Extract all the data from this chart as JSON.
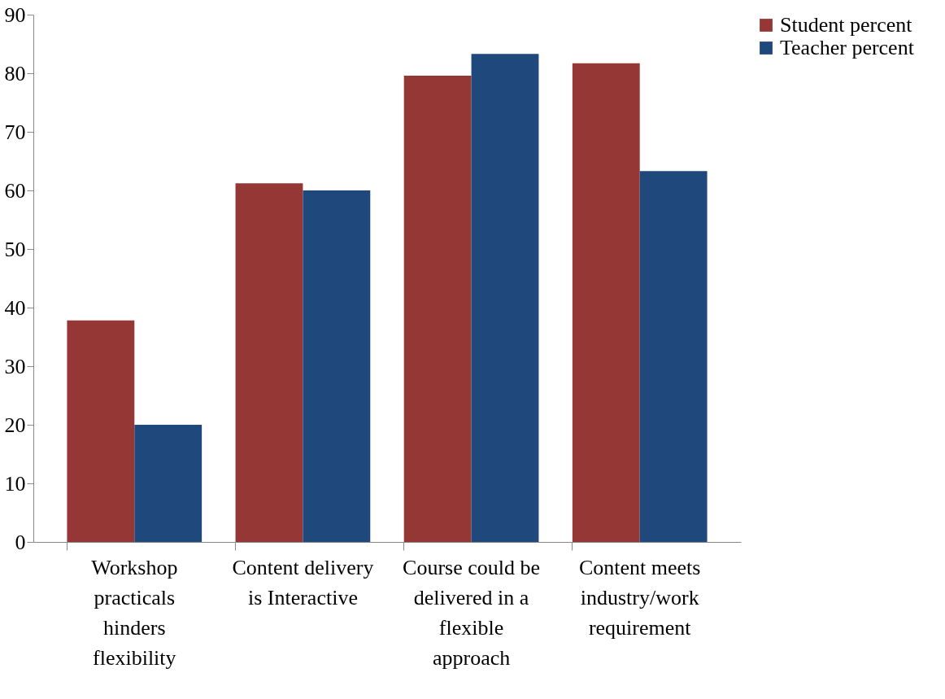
{
  "chart_data": {
    "type": "bar",
    "categories": [
      "Workshop practicals hinders flexibility",
      "Content delivery is Interactive",
      "Course could be delivered in a flexible approach",
      "Content meets industry/work requirement"
    ],
    "series": [
      {
        "name": "Student percent",
        "color": "#953735",
        "values": [
          37.8,
          61.2,
          79.6,
          81.7
        ]
      },
      {
        "name": "Teacher percent",
        "color": "#1f497d",
        "values": [
          20.0,
          60.0,
          83.3,
          63.3
        ]
      }
    ],
    "ylim": [
      0,
      90
    ],
    "yticks": [
      0,
      10,
      20,
      30,
      40,
      50,
      60,
      70,
      80,
      90
    ],
    "grid": false,
    "legend": "right"
  }
}
